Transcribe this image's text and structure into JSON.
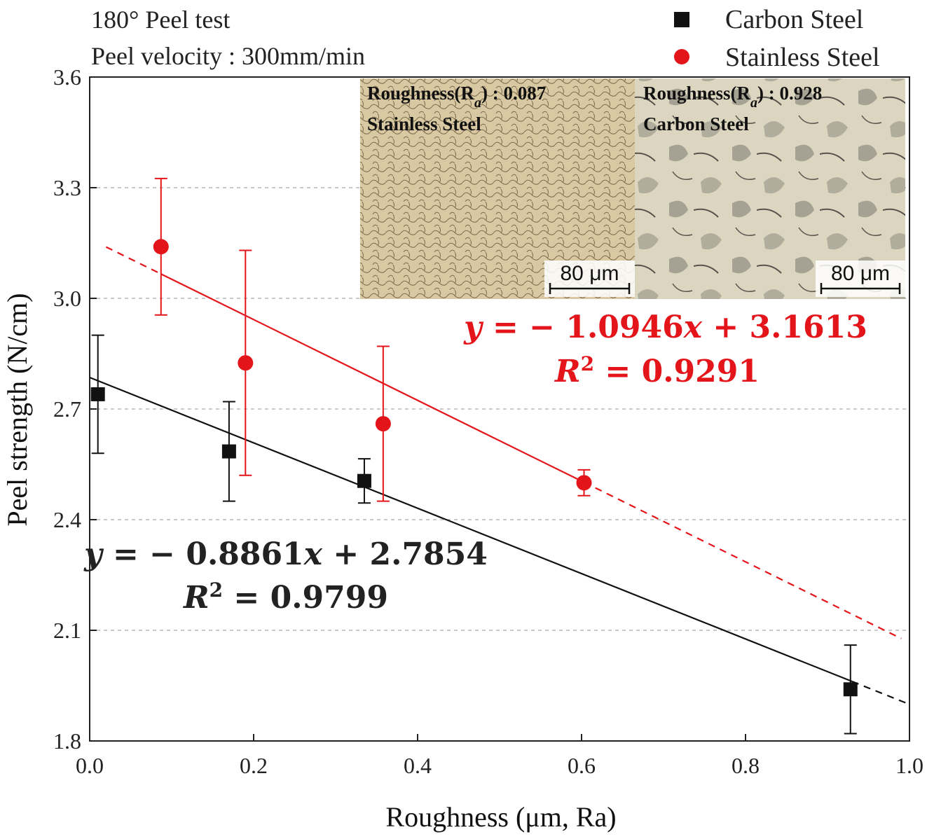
{
  "conditions": {
    "line1": "180° Peel test",
    "line2": "Peel velocity : 300mm/min"
  },
  "legend": {
    "carbon": "Carbon Steel",
    "stainless": "Stainless Steel"
  },
  "colors": {
    "carbon": "#111111",
    "stainless": "#e4141b",
    "grid": "#aaaaaa"
  },
  "micrographs": {
    "stainless": {
      "roughness_label": "Roughness(R",
      "roughness_sub": "a",
      "roughness_value": ") : 0.087",
      "material": "Stainless Steel",
      "scale": "80 μm"
    },
    "carbon": {
      "roughness_label": "Roughness(R",
      "roughness_sub": "a",
      "roughness_value": ") : 0.928",
      "material": "Carbon Steel",
      "scale": "80 μm"
    }
  },
  "equations": {
    "stainless": {
      "y": "y",
      "rhs": " = − 1.0946",
      "x": "x",
      "tail": " + 3.1613",
      "r": "R",
      "r_sup": "2",
      "r_val": " = 0.9291"
    },
    "carbon": {
      "y": "y",
      "rhs": " = − 0.8861",
      "x": "x",
      "tail": " + 2.7854",
      "r": "R",
      "r_sup": "2",
      "r_val": " = 0.9799"
    }
  },
  "chart_data": {
    "type": "scatter",
    "xlabel": "Roughness (μm, Ra)",
    "ylabel": "Peel strength (N/cm)",
    "xlim": [
      0.0,
      1.0
    ],
    "ylim": [
      1.8,
      3.6
    ],
    "xticks": [
      "0.0",
      "0.2",
      "0.4",
      "0.6",
      "0.8",
      "1.0"
    ],
    "yticks": [
      "1.8",
      "2.1",
      "2.4",
      "2.7",
      "3.0",
      "3.3",
      "3.6"
    ],
    "grid": "horizontal dashed",
    "legend_position": "top-right",
    "series": [
      {
        "name": "Carbon Steel",
        "marker": "square",
        "x": [
          0.01,
          0.17,
          0.335,
          0.928
        ],
        "y": [
          2.74,
          2.585,
          2.505,
          1.94
        ],
        "err": [
          0.16,
          0.135,
          0.06,
          0.12
        ],
        "fit": {
          "slope": -0.8861,
          "intercept": 2.7854,
          "solid_range": [
            0.0,
            0.93
          ],
          "dashed_range": [
            0.93,
            1.0
          ]
        }
      },
      {
        "name": "Stainless Steel",
        "marker": "circle",
        "x": [
          0.087,
          0.19,
          0.358,
          0.603
        ],
        "y": [
          3.14,
          2.825,
          2.66,
          2.5
        ],
        "err": [
          0.185,
          0.305,
          0.21,
          0.035
        ],
        "fit": {
          "slope": -1.0946,
          "intercept": 3.1613,
          "solid_range": [
            0.087,
            0.603
          ],
          "dashed_range_low": [
            0.02,
            0.087
          ],
          "dashed_range_high": [
            0.603,
            0.99
          ]
        }
      }
    ]
  }
}
